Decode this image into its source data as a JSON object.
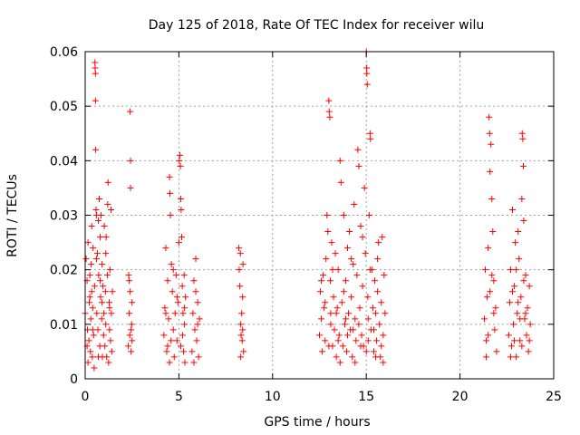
{
  "chart_data": {
    "type": "scatter",
    "title": "Day 125 of 2018, Rate Of TEC Index for receiver wilu",
    "xlabel": "GPS time / hours",
    "ylabel": "ROTI / TECUs",
    "xlim": [
      0,
      25
    ],
    "ylim": [
      0,
      0.06
    ],
    "xticks": [
      0,
      5,
      10,
      15,
      20,
      25
    ],
    "yticks": [
      0,
      0.01,
      0.02,
      0.03,
      0.04,
      0.05,
      0.06
    ],
    "xtick_labels": [
      "0",
      "5",
      "10",
      "15",
      "20",
      "25"
    ],
    "ytick_labels": [
      "0",
      "0.01",
      "0.02",
      "0.03",
      "0.04",
      "0.05",
      "0.06"
    ],
    "grid": true,
    "marker": "+",
    "color": "#ff0000",
    "series": [
      {
        "name": "ROTI",
        "points": [
          [
            0.0,
            0.012
          ],
          [
            0.05,
            0.022
          ],
          [
            0.1,
            0.018
          ],
          [
            0.12,
            0.009
          ],
          [
            0.15,
            0.025
          ],
          [
            0.2,
            0.007
          ],
          [
            0.22,
            0.014
          ],
          [
            0.25,
            0.019
          ],
          [
            0.28,
            0.005
          ],
          [
            0.3,
            0.011
          ],
          [
            0.32,
            0.021
          ],
          [
            0.35,
            0.016
          ],
          [
            0.38,
            0.004
          ],
          [
            0.4,
            0.013
          ],
          [
            0.42,
            0.024
          ],
          [
            0.45,
            0.008
          ],
          [
            0.48,
            0.002
          ],
          [
            0.5,
            0.017
          ],
          [
            0.52,
            0.058
          ],
          [
            0.53,
            0.057
          ],
          [
            0.55,
            0.056
          ],
          [
            0.55,
            0.051
          ],
          [
            0.56,
            0.042
          ],
          [
            0.58,
            0.031
          ],
          [
            0.6,
            0.03
          ],
          [
            0.62,
            0.012
          ],
          [
            0.65,
            0.023
          ],
          [
            0.68,
            0.009
          ],
          [
            0.7,
            0.029
          ],
          [
            0.72,
            0.019
          ],
          [
            0.75,
            0.033
          ],
          [
            0.78,
            0.006
          ],
          [
            0.8,
            0.026
          ],
          [
            0.82,
            0.015
          ],
          [
            0.85,
            0.03
          ],
          [
            0.88,
            0.011
          ],
          [
            0.9,
            0.021
          ],
          [
            0.92,
            0.004
          ],
          [
            0.95,
            0.017
          ],
          [
            0.98,
            0.008
          ],
          [
            1.0,
            0.012
          ],
          [
            1.02,
            0.028
          ],
          [
            1.05,
            0.006
          ],
          [
            1.08,
            0.016
          ],
          [
            1.1,
            0.01
          ],
          [
            1.12,
            0.026
          ],
          [
            1.15,
            0.004
          ],
          [
            1.18,
            0.019
          ],
          [
            1.2,
            0.032
          ],
          [
            1.22,
            0.036
          ],
          [
            1.25,
            0.003
          ],
          [
            1.28,
            0.014
          ],
          [
            1.3,
            0.009
          ],
          [
            1.32,
            0.02
          ],
          [
            1.35,
            0.007
          ],
          [
            1.38,
            0.031
          ],
          [
            1.4,
            0.012
          ],
          [
            1.42,
            0.005
          ],
          [
            1.45,
            0.016
          ],
          [
            0.15,
            0.003
          ],
          [
            0.25,
            0.015
          ],
          [
            0.35,
            0.028
          ],
          [
            0.6,
            0.022
          ],
          [
            0.7,
            0.004
          ],
          [
            0.9,
            0.014
          ],
          [
            1.1,
            0.023
          ],
          [
            1.3,
            0.013
          ],
          [
            0.1,
            0.006
          ],
          [
            0.4,
            0.009
          ],
          [
            0.8,
            0.018
          ],
          [
            2.3,
            0.006
          ],
          [
            2.32,
            0.019
          ],
          [
            2.35,
            0.012
          ],
          [
            2.38,
            0.008
          ],
          [
            2.4,
            0.016
          ],
          [
            2.4,
            0.049
          ],
          [
            2.42,
            0.04
          ],
          [
            2.42,
            0.035
          ],
          [
            2.45,
            0.005
          ],
          [
            2.48,
            0.01
          ],
          [
            2.5,
            0.007
          ],
          [
            2.5,
            0.014
          ],
          [
            2.35,
            0.018
          ],
          [
            2.45,
            0.009
          ],
          [
            4.2,
            0.008
          ],
          [
            4.25,
            0.013
          ],
          [
            4.3,
            0.024
          ],
          [
            4.35,
            0.005
          ],
          [
            4.4,
            0.018
          ],
          [
            4.45,
            0.011
          ],
          [
            4.5,
            0.037
          ],
          [
            4.52,
            0.034
          ],
          [
            4.55,
            0.03
          ],
          [
            4.58,
            0.007
          ],
          [
            4.6,
            0.021
          ],
          [
            4.65,
            0.016
          ],
          [
            4.7,
            0.009
          ],
          [
            4.75,
            0.004
          ],
          [
            4.8,
            0.012
          ],
          [
            4.85,
            0.019
          ],
          [
            4.9,
            0.007
          ],
          [
            4.95,
            0.014
          ],
          [
            5.0,
            0.025
          ],
          [
            5.02,
            0.04
          ],
          [
            5.05,
            0.041
          ],
          [
            5.08,
            0.039
          ],
          [
            5.1,
            0.033
          ],
          [
            5.12,
            0.031
          ],
          [
            5.15,
            0.026
          ],
          [
            5.18,
            0.017
          ],
          [
            5.2,
            0.008
          ],
          [
            5.22,
            0.012
          ],
          [
            5.25,
            0.005
          ],
          [
            5.28,
            0.019
          ],
          [
            5.3,
            0.01
          ],
          [
            5.32,
            0.003
          ],
          [
            5.35,
            0.015
          ],
          [
            4.3,
            0.012
          ],
          [
            4.5,
            0.003
          ],
          [
            4.7,
            0.02
          ],
          [
            4.9,
            0.015
          ],
          [
            5.1,
            0.006
          ],
          [
            5.3,
            0.013
          ],
          [
            4.4,
            0.006
          ],
          [
            5.7,
            0.005
          ],
          [
            5.75,
            0.012
          ],
          [
            5.8,
            0.018
          ],
          [
            5.85,
            0.009
          ],
          [
            5.9,
            0.022
          ],
          [
            5.95,
            0.007
          ],
          [
            6.0,
            0.014
          ],
          [
            6.05,
            0.004
          ],
          [
            6.1,
            0.011
          ],
          [
            5.8,
            0.003
          ],
          [
            5.9,
            0.016
          ],
          [
            6.0,
            0.01
          ],
          [
            8.2,
            0.024
          ],
          [
            8.22,
            0.02
          ],
          [
            8.25,
            0.017
          ],
          [
            8.28,
            0.023
          ],
          [
            8.3,
            0.01
          ],
          [
            8.32,
            0.008
          ],
          [
            8.35,
            0.012
          ],
          [
            8.38,
            0.007
          ],
          [
            8.4,
            0.009
          ],
          [
            8.42,
            0.021
          ],
          [
            8.45,
            0.005
          ],
          [
            8.3,
            0.004
          ],
          [
            8.4,
            0.015
          ],
          [
            12.5,
            0.008
          ],
          [
            12.55,
            0.016
          ],
          [
            12.6,
            0.011
          ],
          [
            12.65,
            0.005
          ],
          [
            12.7,
            0.019
          ],
          [
            12.75,
            0.013
          ],
          [
            12.8,
            0.007
          ],
          [
            12.85,
            0.022
          ],
          [
            12.9,
            0.03
          ],
          [
            12.95,
            0.027
          ],
          [
            13.0,
            0.051
          ],
          [
            13.02,
            0.049
          ],
          [
            13.05,
            0.048
          ],
          [
            13.08,
            0.018
          ],
          [
            13.1,
            0.01
          ],
          [
            13.15,
            0.025
          ],
          [
            13.2,
            0.006
          ],
          [
            13.25,
            0.015
          ],
          [
            13.3,
            0.009
          ],
          [
            13.35,
            0.023
          ],
          [
            13.4,
            0.004
          ],
          [
            13.45,
            0.013
          ],
          [
            13.5,
            0.02
          ],
          [
            13.55,
            0.008
          ],
          [
            13.6,
            0.04
          ],
          [
            13.65,
            0.036
          ],
          [
            13.7,
            0.014
          ],
          [
            13.75,
            0.006
          ],
          [
            13.8,
            0.03
          ],
          [
            13.85,
            0.01
          ],
          [
            13.9,
            0.018
          ],
          [
            13.95,
            0.005
          ],
          [
            14.0,
            0.024
          ],
          [
            14.05,
            0.012
          ],
          [
            14.1,
            0.027
          ],
          [
            14.15,
            0.009
          ],
          [
            14.2,
            0.015
          ],
          [
            14.25,
            0.004
          ],
          [
            14.3,
            0.021
          ],
          [
            14.35,
            0.032
          ],
          [
            14.4,
            0.011
          ],
          [
            14.45,
            0.007
          ],
          [
            14.5,
            0.019
          ],
          [
            14.55,
            0.042
          ],
          [
            14.6,
            0.039
          ],
          [
            14.65,
            0.013
          ],
          [
            14.7,
            0.028
          ],
          [
            14.75,
            0.008
          ],
          [
            14.8,
            0.017
          ],
          [
            14.85,
            0.006
          ],
          [
            14.9,
            0.035
          ],
          [
            14.95,
            0.023
          ],
          [
            15.0,
            0.06
          ],
          [
            15.02,
            0.057
          ],
          [
            15.03,
            0.056
          ],
          [
            15.05,
            0.054
          ],
          [
            15.08,
            0.015
          ],
          [
            15.1,
            0.011
          ],
          [
            15.15,
            0.03
          ],
          [
            15.2,
            0.045
          ],
          [
            15.22,
            0.044
          ],
          [
            15.25,
            0.009
          ],
          [
            15.3,
            0.02
          ],
          [
            15.35,
            0.013
          ],
          [
            15.4,
            0.005
          ],
          [
            15.45,
            0.018
          ],
          [
            15.5,
            0.012
          ],
          [
            15.55,
            0.007
          ],
          [
            15.6,
            0.016
          ],
          [
            15.65,
            0.025
          ],
          [
            15.7,
            0.01
          ],
          [
            15.75,
            0.004
          ],
          [
            15.8,
            0.014
          ],
          [
            15.85,
            0.026
          ],
          [
            15.9,
            0.008
          ],
          [
            15.95,
            0.019
          ],
          [
            16.0,
            0.012
          ],
          [
            12.6,
            0.018
          ],
          [
            12.8,
            0.014
          ],
          [
            13.0,
            0.006
          ],
          [
            13.2,
            0.02
          ],
          [
            13.4,
            0.012
          ],
          [
            13.6,
            0.003
          ],
          [
            13.8,
            0.016
          ],
          [
            14.0,
            0.008
          ],
          [
            14.2,
            0.022
          ],
          [
            14.4,
            0.003
          ],
          [
            14.6,
            0.01
          ],
          [
            14.8,
            0.026
          ],
          [
            15.0,
            0.005
          ],
          [
            15.2,
            0.02
          ],
          [
            15.4,
            0.009
          ],
          [
            15.6,
            0.022
          ],
          [
            15.8,
            0.006
          ],
          [
            13.1,
            0.012
          ],
          [
            13.5,
            0.007
          ],
          [
            13.9,
            0.011
          ],
          [
            14.3,
            0.009
          ],
          [
            14.7,
            0.006
          ],
          [
            15.1,
            0.007
          ],
          [
            15.5,
            0.004
          ],
          [
            15.9,
            0.003
          ],
          [
            21.3,
            0.011
          ],
          [
            21.35,
            0.02
          ],
          [
            21.4,
            0.007
          ],
          [
            21.45,
            0.015
          ],
          [
            21.5,
            0.024
          ],
          [
            21.55,
            0.048
          ],
          [
            21.58,
            0.045
          ],
          [
            21.6,
            0.038
          ],
          [
            21.65,
            0.043
          ],
          [
            21.7,
            0.033
          ],
          [
            21.75,
            0.027
          ],
          [
            21.8,
            0.018
          ],
          [
            21.85,
            0.009
          ],
          [
            21.9,
            0.013
          ],
          [
            21.95,
            0.005
          ],
          [
            21.4,
            0.004
          ],
          [
            21.6,
            0.016
          ],
          [
            21.8,
            0.012
          ],
          [
            21.5,
            0.008
          ],
          [
            21.7,
            0.019
          ],
          [
            22.6,
            0.008
          ],
          [
            22.65,
            0.014
          ],
          [
            22.7,
            0.02
          ],
          [
            22.75,
            0.006
          ],
          [
            22.8,
            0.031
          ],
          [
            22.85,
            0.01
          ],
          [
            22.9,
            0.017
          ],
          [
            22.95,
            0.025
          ],
          [
            23.0,
            0.004
          ],
          [
            23.05,
            0.012
          ],
          [
            23.1,
            0.027
          ],
          [
            23.15,
            0.022
          ],
          [
            23.2,
            0.007
          ],
          [
            23.25,
            0.015
          ],
          [
            23.3,
            0.033
          ],
          [
            23.32,
            0.045
          ],
          [
            23.35,
            0.044
          ],
          [
            23.38,
            0.039
          ],
          [
            23.4,
            0.029
          ],
          [
            23.45,
            0.011
          ],
          [
            23.5,
            0.019
          ],
          [
            23.55,
            0.008
          ],
          [
            23.6,
            0.013
          ],
          [
            23.65,
            0.005
          ],
          [
            23.7,
            0.017
          ],
          [
            23.75,
            0.01
          ],
          [
            22.7,
            0.004
          ],
          [
            22.9,
            0.007
          ],
          [
            23.1,
            0.014
          ],
          [
            23.3,
            0.006
          ],
          [
            23.5,
            0.012
          ],
          [
            23.7,
            0.007
          ],
          [
            22.8,
            0.016
          ],
          [
            23.0,
            0.02
          ],
          [
            23.2,
            0.011
          ],
          [
            23.4,
            0.018
          ]
        ]
      }
    ]
  }
}
